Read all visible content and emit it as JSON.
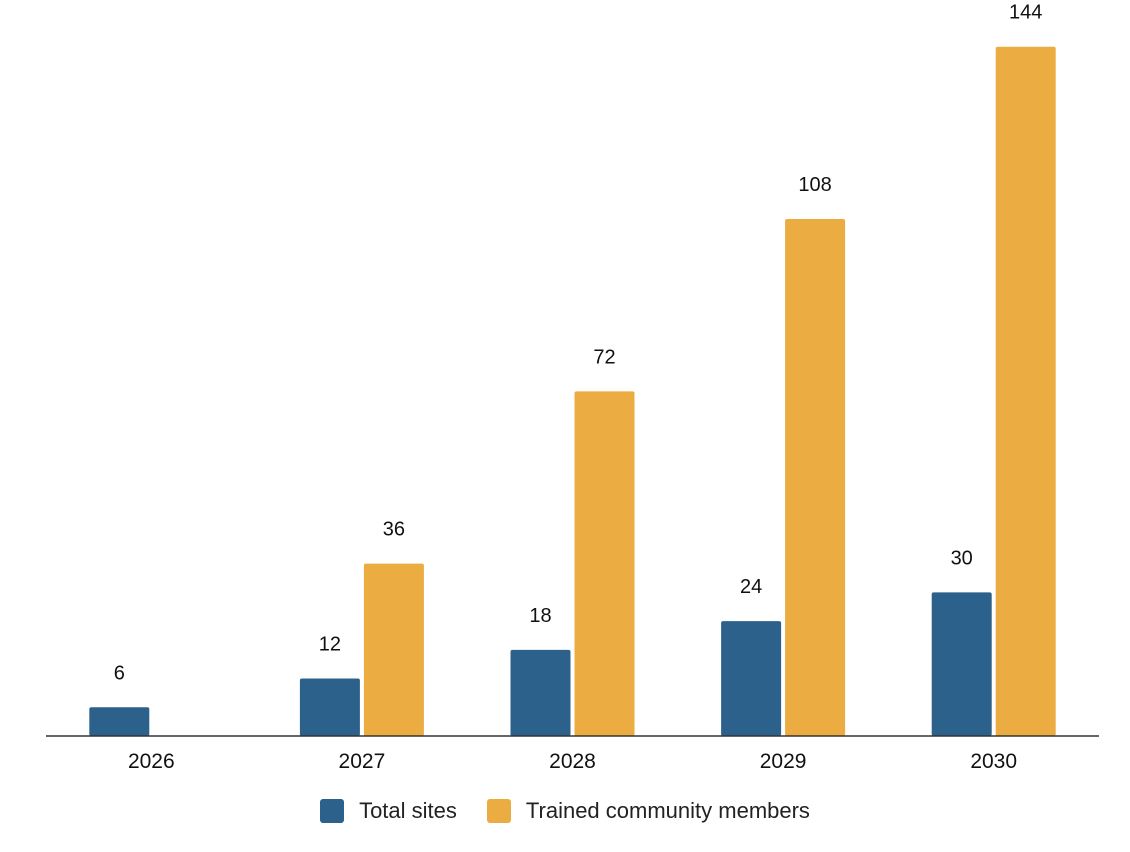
{
  "chart_data": {
    "type": "bar",
    "title": "",
    "xlabel": "",
    "ylabel": "",
    "categories": [
      "2026",
      "2027",
      "2028",
      "2029",
      "2030"
    ],
    "series": [
      {
        "name": "Total sites",
        "values": [
          6,
          12,
          18,
          24,
          30
        ],
        "color": "#2c618c"
      },
      {
        "name": "Trained community members",
        "values": [
          null,
          36,
          72,
          108,
          144
        ],
        "color": "#ebac42"
      }
    ],
    "ylim": [
      0,
      150
    ],
    "grid": false,
    "y_axis_visible": false,
    "data_labels": true,
    "legend_position": "bottom"
  }
}
